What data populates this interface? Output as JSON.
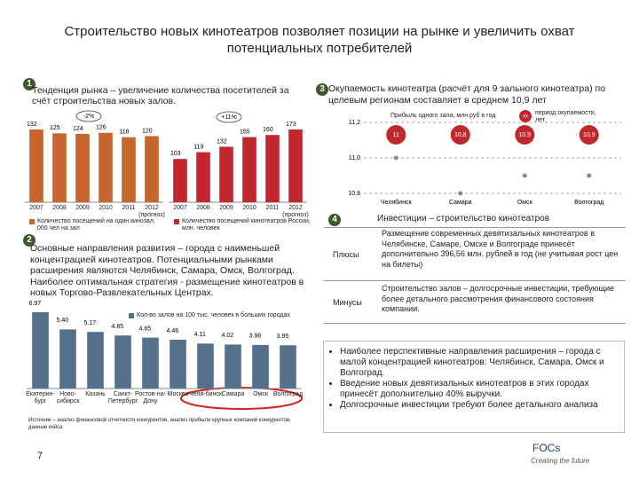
{
  "title": "Строительство новых кинотеатров позволяет позиции на рынке и увеличить охват потенциальных потребителей",
  "section1": {
    "number": "1",
    "text": "Тенденция рынка – увеличение количества посетителей за счёт строительства новых залов."
  },
  "section2": {
    "number": "2",
    "text": "Основные направления развития – города с наименьшей концентрацией кинотеатров. Потенциальными рынками расширения являются Челябинск, Самара, Омск, Волгоград. Наиболее оптимальная стратегия - размещение кинотеатров в новых Торгово-Развлекательных Центрах."
  },
  "section3": {
    "number": "3",
    "text": "Окупаемость кинотеатра (расчёт для 9 зального кинотеатра) по целевым регионам составляет в среднем 10,9 лет"
  },
  "section4": {
    "number": "4",
    "heading": "Инвестиции – строительство кинотеатров",
    "rows": [
      [
        "Плюсы",
        "Размещение современных девятизальных кинотеатров в Челябинске, Самаре, Омске и Волгограде принесёт дополнительно 396,56 млн. рублей в год (не учитывая рост цен на билеты)"
      ],
      [
        "Минусы",
        "Строительство залов – долгосрочные инвестиции, требующие более детального рассмотрения финансового состояния компании."
      ]
    ]
  },
  "bullets": [
    "Наиболее перспективные направления расширения – города с малой концентрацией кинотеатров: Челябинск, Самара, Омск и Волгоград.",
    "Введение новых девятизальных кинотеатров в этих городах принесёт дополнительно 40% выручки.",
    "Долгосрочные инвестиции требуют более детального анализа"
  ],
  "source": "Источник – анализ финансовой отчетности конкурентов, анализ прибыли крупных компаний конкурентов, данные кейса",
  "page_number": "7",
  "logo": "FOCs",
  "tagline": "Creating the future",
  "chart_data": [
    {
      "type": "bar",
      "categories": [
        "2007",
        "2008",
        "2009",
        "2010",
        "2011",
        "2012 (прогноз)"
      ],
      "values": [
        132,
        125,
        124,
        126,
        118,
        120
      ],
      "color": "#c8642d",
      "annotation": "-2%",
      "legend": "Количество посещений на один кинозал, 000 чел на зал"
    },
    {
      "type": "bar",
      "categories": [
        "2007",
        "2008",
        "2009",
        "2010",
        "2011",
        "2012 (прогноз)"
      ],
      "values": [
        103,
        119,
        132,
        155,
        160,
        173
      ],
      "color": "#c0282d",
      "annotation": "+11%",
      "legend": "Количество посещений кинотеатров России, млн. человек"
    },
    {
      "type": "bar",
      "categories": [
        "Екатерин-бург",
        "Ново-сибирск",
        "Казань",
        "Санкт-Петербург",
        "Ростов-на-Дону",
        "Москва",
        "Челя-бинск",
        "Самара",
        "Омск",
        "Волгоград"
      ],
      "values": [
        6.97,
        5.4,
        5.17,
        4.85,
        4.65,
        4.46,
        4.11,
        4.02,
        3.98,
        3.95
      ],
      "value_labels": [
        "6.97",
        "5.40",
        "5.17",
        "4.85",
        "4.65",
        "4.46",
        "4.11",
        "4.02",
        "3.98",
        "3.95"
      ],
      "color": "#55708c",
      "legend": "Кол-во залов на 100 тыс. человек в больших городах"
    },
    {
      "type": "dot",
      "categories": [
        "Челябинск",
        "Самара",
        "Омск",
        "Волгоград"
      ],
      "values": [
        11,
        10.8,
        10.9,
        10.9
      ],
      "value_labels": [
        "11",
        "10,8",
        "10,9",
        "10,9"
      ],
      "color": "#c0282d",
      "ylim": [
        10.8,
        11.2
      ],
      "yticks": [
        {
          "value": 11.2,
          "label": "11,2"
        },
        {
          "value": 11,
          "label": "11,0"
        },
        {
          "value": 10.8,
          "label": "10,8"
        }
      ],
      "grid": true,
      "legend": "Прибыль одного зала, млн руб в год",
      "legend_marker": "хх",
      "legend_marker_text": "период окупаемости, лет"
    }
  ]
}
